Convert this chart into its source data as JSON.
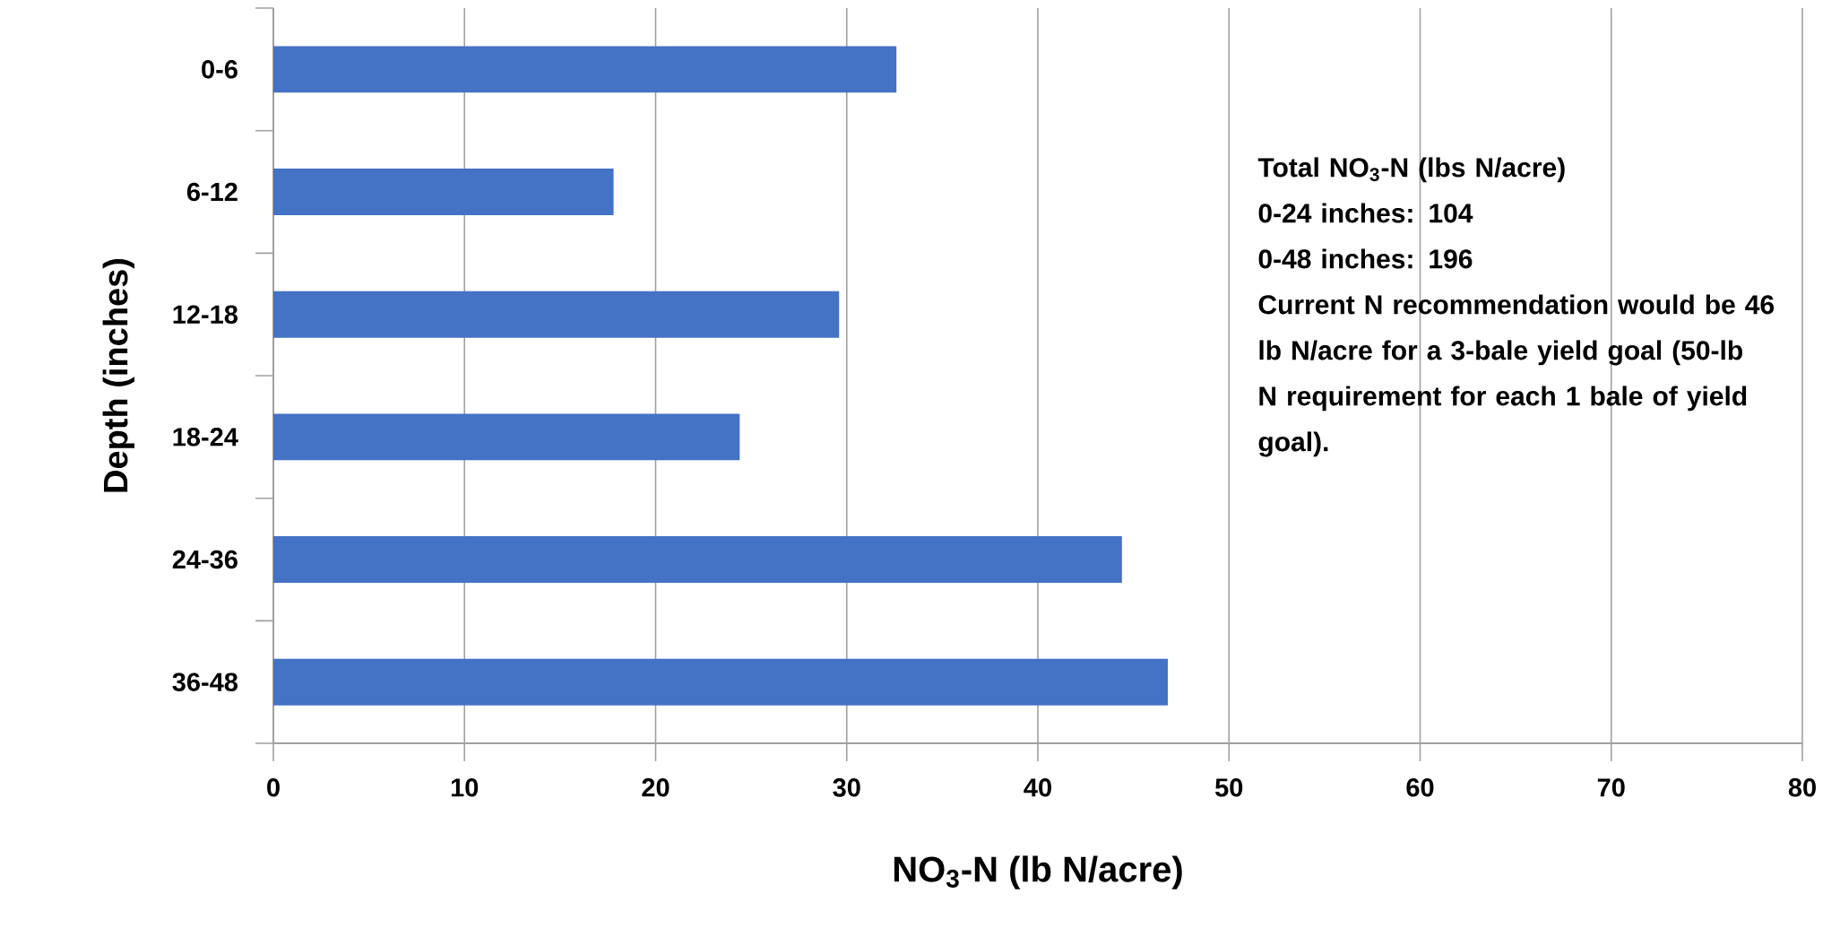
{
  "chart_data": {
    "type": "bar",
    "orientation": "horizontal",
    "xlabel": "NO$_{3}$-N (lb N/acre)",
    "ylabel": "Depth (inches)",
    "categories": [
      "0-6",
      "6-12",
      "12-18",
      "18-24",
      "24-36",
      "36-48"
    ],
    "values": [
      32.6,
      17.8,
      29.6,
      24.4,
      44.4,
      46.8
    ],
    "color": "#4472c4",
    "xlim": [
      0,
      80
    ],
    "xticks": [
      0,
      10,
      20,
      30,
      40,
      50,
      60,
      70,
      80
    ],
    "grid": "x",
    "annotations": [
      "Total NO$_{3}$-N (lbs N/acre)",
      "0-24 inches:  104",
      "0-48 inches:  196",
      "Current N recommendation would be 46 lb N/acre for a 3-bale yield goal (50-lb N requirement for each 1 bale of yield goal)."
    ]
  }
}
